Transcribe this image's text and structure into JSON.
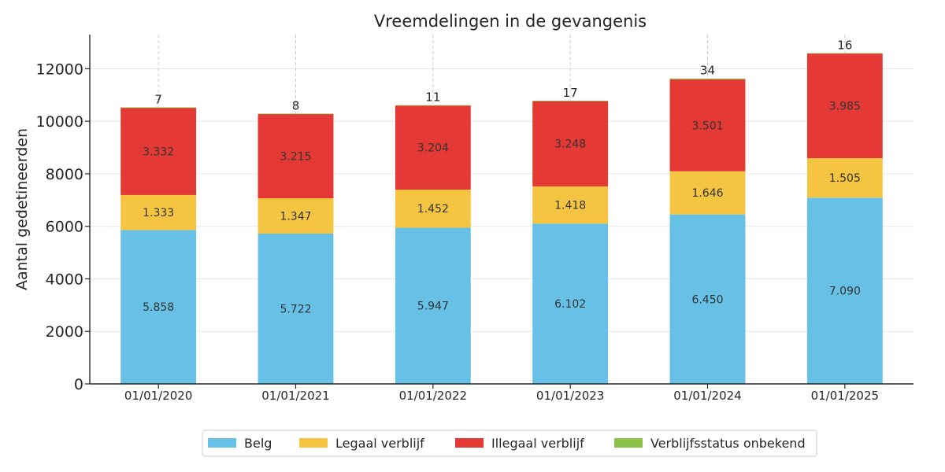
{
  "chart_data": {
    "type": "bar",
    "stacked": true,
    "title": "Vreemdelingen in de gevangenis",
    "xlabel": "",
    "ylabel": "Aantal gedetineerden",
    "ylim": [
      0,
      13300
    ],
    "yticks": [
      "0",
      "2000",
      "4000",
      "6000",
      "8000",
      "10000",
      "12000"
    ],
    "grid": true,
    "legend_position": "bottom",
    "categories": [
      "01/01/2020",
      "01/01/2021",
      "01/01/2022",
      "01/01/2023",
      "01/01/2024",
      "01/01/2025"
    ],
    "series": [
      {
        "name": "Belg",
        "color": "#67C1E6",
        "values": [
          5858,
          5722,
          5947,
          6102,
          6450,
          7090
        ],
        "labels": [
          "5.858",
          "5.722",
          "5.947",
          "6.102",
          "6.450",
          "7.090"
        ]
      },
      {
        "name": "Legaal verblijf",
        "color": "#F5C542",
        "values": [
          1333,
          1347,
          1452,
          1418,
          1646,
          1505
        ],
        "labels": [
          "1.333",
          "1.347",
          "1.452",
          "1.418",
          "1.646",
          "1.505"
        ]
      },
      {
        "name": "Illegaal verblijf",
        "color": "#E53935",
        "values": [
          3332,
          3215,
          3204,
          3248,
          3501,
          3985
        ],
        "labels": [
          "3.332",
          "3.215",
          "3.204",
          "3.248",
          "3.501",
          "3.985"
        ]
      },
      {
        "name": "Verblijfsstatus onbekend",
        "color": "#8BC34A",
        "values": [
          7,
          8,
          11,
          17,
          34,
          16
        ],
        "labels": [
          "7",
          "8",
          "11",
          "17",
          "34",
          "16"
        ]
      }
    ]
  }
}
